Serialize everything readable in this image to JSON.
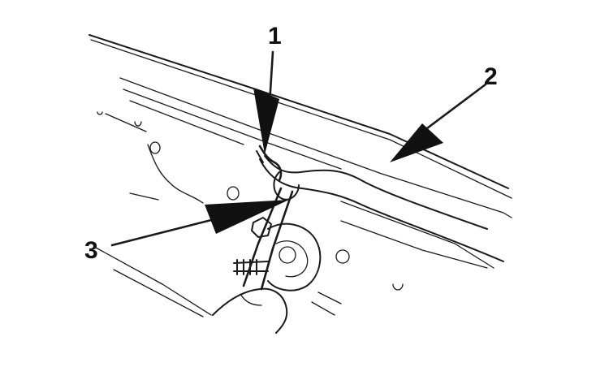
{
  "diagram": {
    "callouts": [
      {
        "id": "1",
        "label": "1"
      },
      {
        "id": "2",
        "label": "2"
      },
      {
        "id": "3",
        "label": "3"
      }
    ],
    "colors": {
      "ink": "#1a1a1a",
      "background": "#ffffff"
    }
  }
}
